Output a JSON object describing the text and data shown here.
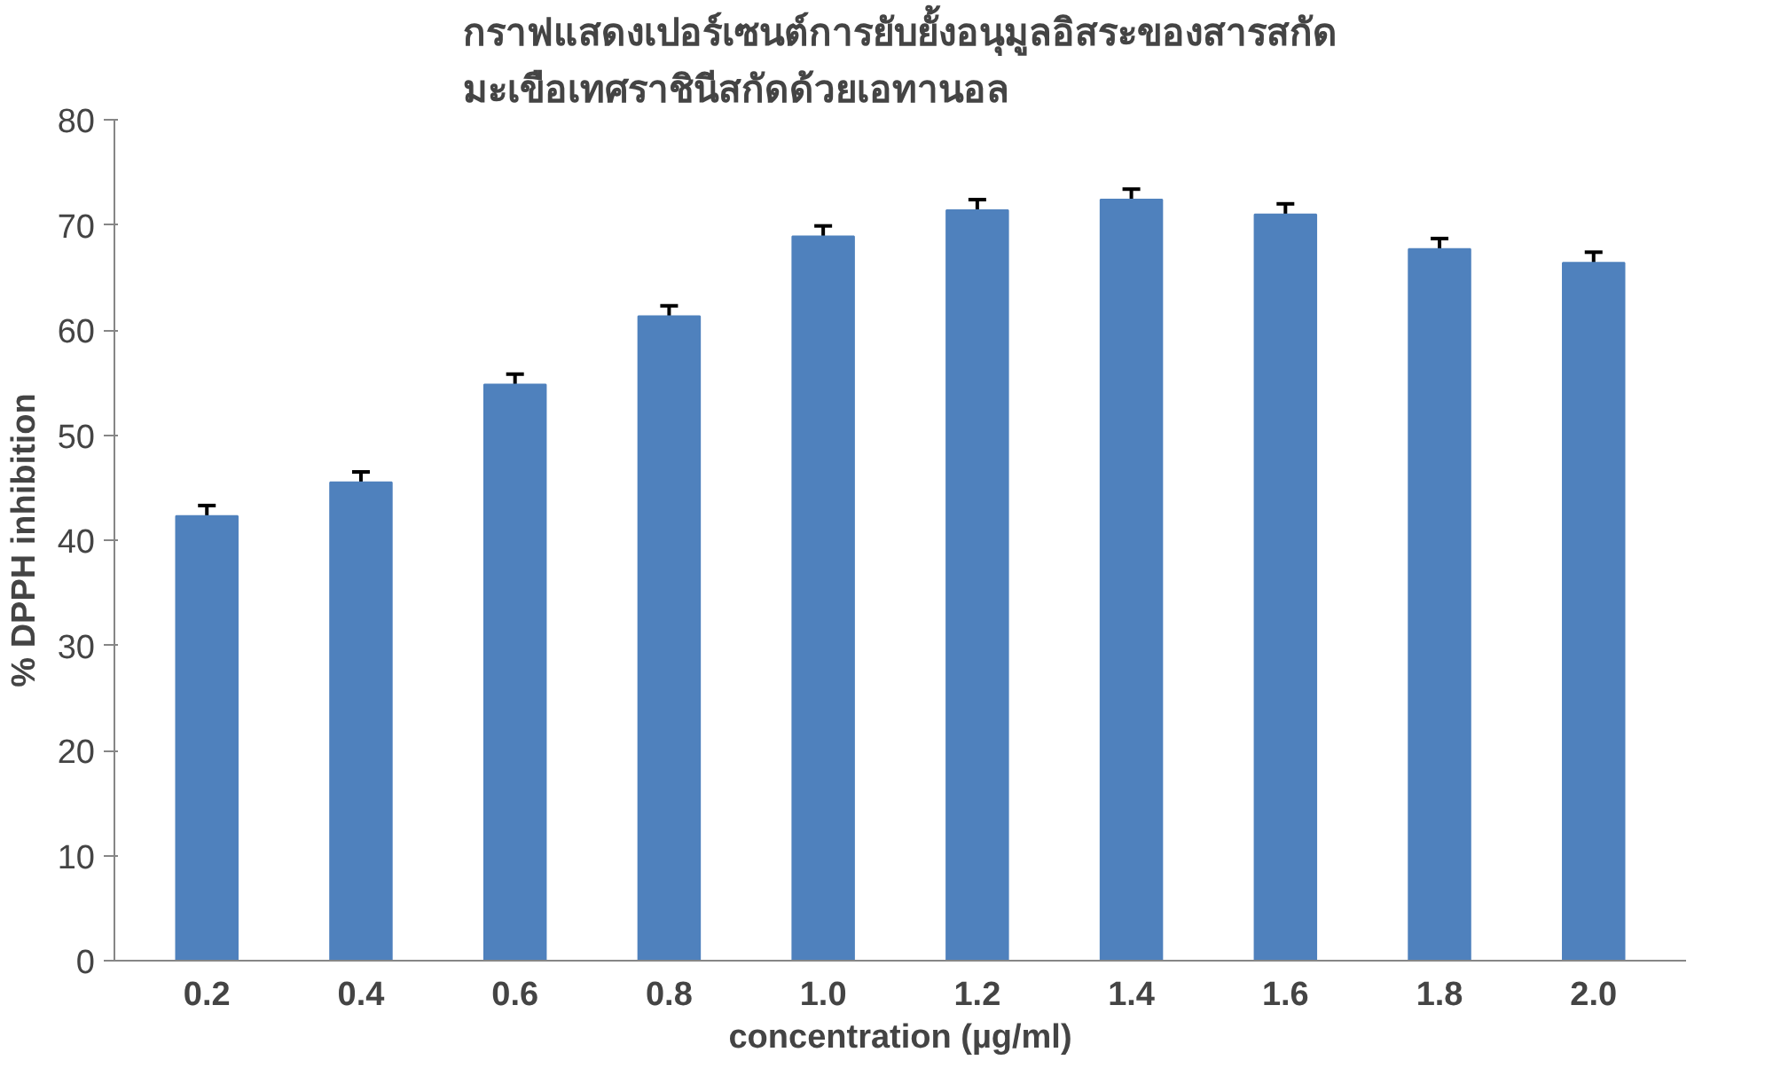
{
  "chart_data": {
    "type": "bar",
    "title": "กราฟแสดงเปอร์เซนต์การยับยั้งอนุมูลอิสระของสารสกัด\nมะเขือเทศราชินีสกัดด้วยเอทานอล",
    "xlabel": "concentration (µg/ml)",
    "ylabel": "% DPPH inhibition",
    "categories": [
      "0.2",
      "0.4",
      "0.6",
      "0.8",
      "1.0",
      "1.2",
      "1.4",
      "1.6",
      "1.8",
      "2.0"
    ],
    "values": [
      42.3,
      45.5,
      54.8,
      61.3,
      68.9,
      71.4,
      72.4,
      71.0,
      67.7,
      66.4
    ],
    "errors": [
      [
        42.3,
        43.3
      ],
      [
        45.5,
        46.5
      ],
      [
        54.8,
        55.8
      ],
      [
        61.3,
        62.3
      ],
      [
        68.9,
        69.9
      ],
      [
        71.4,
        72.4
      ],
      [
        72.4,
        73.4
      ],
      [
        71.0,
        72.0
      ],
      [
        67.7,
        68.7
      ],
      [
        66.4,
        67.4
      ]
    ],
    "color": "#4f81bd",
    "ylim": [
      0,
      80
    ],
    "yticks": [
      0,
      10,
      20,
      30,
      40,
      50,
      60,
      70,
      80
    ],
    "grid": false
  }
}
